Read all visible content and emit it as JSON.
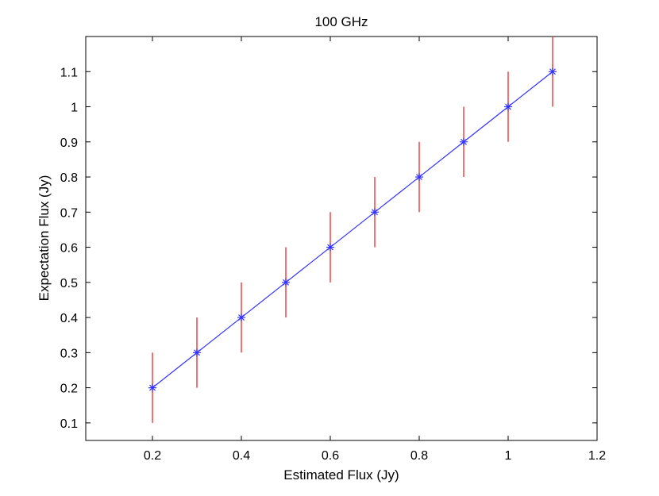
{
  "chart_data": {
    "type": "line",
    "title": "100 GHz",
    "xlabel": "Estimated Flux (Jy)",
    "ylabel": "Expectation Flux (Jy)",
    "xlim": [
      0.05,
      1.2
    ],
    "ylim": [
      0.05,
      1.2
    ],
    "xticks": [
      0.2,
      0.4,
      0.6,
      0.8,
      1,
      1.2
    ],
    "xtick_labels": [
      "0.2",
      "0.4",
      "0.6",
      "0.8",
      "1",
      "1.2"
    ],
    "yticks": [
      0.1,
      0.2,
      0.3,
      0.4,
      0.5,
      0.6,
      0.7,
      0.8,
      0.9,
      1,
      1.1
    ],
    "ytick_labels": [
      "0.1",
      "0.2",
      "0.3",
      "0.4",
      "0.5",
      "0.6",
      "0.7",
      "0.8",
      "0.9",
      "1",
      "1.1"
    ],
    "grid": false,
    "series": [
      {
        "x": [
          0.2,
          0.3,
          0.4,
          0.5,
          0.6,
          0.7,
          0.8,
          0.9,
          1.0,
          1.1
        ],
        "y": [
          0.2,
          0.3,
          0.4,
          0.5,
          0.6,
          0.7,
          0.8,
          0.9,
          1.0,
          1.1
        ],
        "error": [
          0.1,
          0.1,
          0.1,
          0.1,
          0.1,
          0.1,
          0.1,
          0.1,
          0.1,
          0.1
        ],
        "marker": "asterisk",
        "color": "#3333ff",
        "error_color": "#ee4444"
      }
    ]
  }
}
